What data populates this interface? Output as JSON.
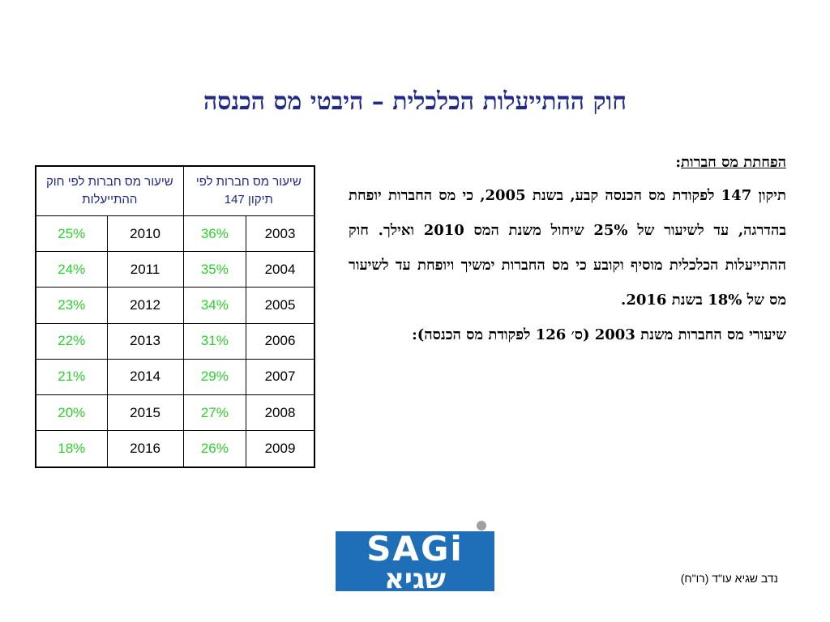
{
  "title": "חוק ההתייעלות הכלכלית – היבטי מס הכנסה",
  "body": {
    "heading": "הפחתת מס חברות",
    "heading_suffix": ":",
    "paragraph1": "תיקון 147 לפקודת מס הכנסה קבע, בשנת 2005, כי מס החברות יופחת בהדרגה, עד לשיעור של 25% שיחול משנת המס 2010 ואילך. חוק ההתייעלות הכלכלית מוסיף וקובע כי מס החברות ימשיך ויופחת עד לשיעור מס של 18% בשנת 2016.",
    "paragraph2": "שיעורי מס החברות משנת 2003 (ס׳ 126 לפקודת מס הכנסה):"
  },
  "table": {
    "header_right": "שיעור מס חברות לפי תיקון 147",
    "header_left": "שיעור מס חברות לפי חוק ההתייעלות",
    "rows": [
      {
        "year_a": "2003",
        "rate_a": "36%",
        "year_b": "2010",
        "rate_b": "25%"
      },
      {
        "year_a": "2004",
        "rate_a": "35%",
        "year_b": "2011",
        "rate_b": "24%"
      },
      {
        "year_a": "2005",
        "rate_a": "34%",
        "year_b": "2012",
        "rate_b": "23%"
      },
      {
        "year_a": "2006",
        "rate_a": "31%",
        "year_b": "2013",
        "rate_b": "22%"
      },
      {
        "year_a": "2007",
        "rate_a": "29%",
        "year_b": "2014",
        "rate_b": "21%"
      },
      {
        "year_a": "2008",
        "rate_a": "27%",
        "year_b": "2015",
        "rate_b": "20%"
      },
      {
        "year_a": "2009",
        "rate_a": "26%",
        "year_b": "2016",
        "rate_b": "18%"
      }
    ]
  },
  "logo": {
    "text_latin": "SAGi",
    "text_hebrew": "שגיא",
    "colors": {
      "blue": "#1f6fb8",
      "gray": "#a0a0a0"
    }
  },
  "footer": "נדב שגיא עו\"ד (רו\"ח)",
  "colors": {
    "title": "#1f2a8c",
    "table_header": "#1f2a8c",
    "rate_green": "#2bd12b"
  }
}
